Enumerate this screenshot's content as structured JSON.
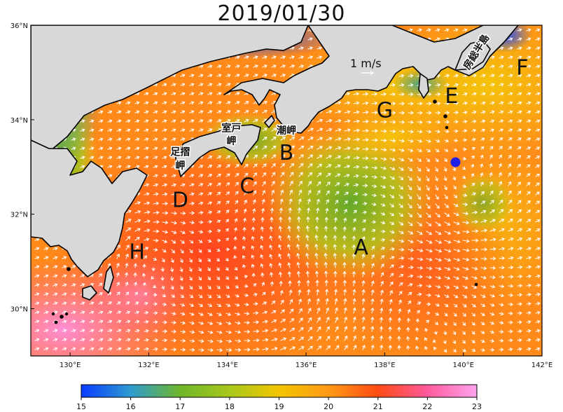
{
  "title": "2019/01/30",
  "map": {
    "lat_ticks": [
      {
        "value": 36,
        "label": "36°N"
      },
      {
        "value": 34,
        "label": "34°N"
      },
      {
        "value": 32,
        "label": "32°N"
      },
      {
        "value": 30,
        "label": "30°N"
      }
    ],
    "lon_ticks": [
      {
        "value": 130,
        "label": "130°E"
      },
      {
        "value": 132,
        "label": "132°E"
      },
      {
        "value": 134,
        "label": "134°E"
      },
      {
        "value": 136,
        "label": "136°E"
      },
      {
        "value": 138,
        "label": "138°E"
      },
      {
        "value": 140,
        "label": "140°E"
      },
      {
        "value": 142,
        "label": "142°E"
      }
    ],
    "lon_range": [
      129,
      142
    ],
    "lat_range": [
      29,
      36
    ],
    "region_labels": [
      {
        "text": "A",
        "lon": 137.4,
        "lat": 31.3
      },
      {
        "text": "B",
        "lon": 135.5,
        "lat": 33.3
      },
      {
        "text": "C",
        "lon": 134.5,
        "lat": 32.6
      },
      {
        "text": "D",
        "lon": 132.8,
        "lat": 32.3
      },
      {
        "text": "E",
        "lon": 139.7,
        "lat": 34.5
      },
      {
        "text": "F",
        "lon": 141.5,
        "lat": 35.1
      },
      {
        "text": "G",
        "lon": 138.0,
        "lat": 34.2
      },
      {
        "text": "H",
        "lon": 131.7,
        "lat": 31.2
      }
    ],
    "place_labels": [
      {
        "text": "室戸",
        "lon": 134.1,
        "lat": 33.75
      },
      {
        "text": "岬",
        "lon": 134.1,
        "lat": 33.48
      },
      {
        "text": "足摺",
        "lon": 132.8,
        "lat": 33.25
      },
      {
        "text": "岬",
        "lon": 132.8,
        "lat": 32.96
      },
      {
        "text": "潮岬",
        "lon": 135.5,
        "lat": 33.7
      },
      {
        "text": "房総半島",
        "lon": 140.4,
        "lat": 35.4
      }
    ],
    "marker": {
      "name": "observation-point",
      "lon": 139.8,
      "lat": 33.1,
      "color": "#1f1fe6"
    },
    "scale_vector": {
      "label": "1 m/s"
    }
  },
  "colorbar": {
    "min": 15,
    "max": 23,
    "ticks": [
      "15",
      "16",
      "17",
      "18",
      "19",
      "20",
      "21",
      "22",
      "23"
    ],
    "colors": [
      "#0a3cff",
      "#2e9bd0",
      "#6fb62a",
      "#a8c81c",
      "#f2c500",
      "#ff9a16",
      "#ff4a14",
      "#ff5a9b",
      "#ffa4ee"
    ]
  },
  "colors": {
    "land": "#d8d8d8",
    "ocean_warm": "#ff6a1a",
    "ocean_hot": "#ff66aa",
    "cold_eddy": "#7cb83a",
    "coastal_cold": "#0a3cff",
    "arrows": "#ffffff"
  }
}
